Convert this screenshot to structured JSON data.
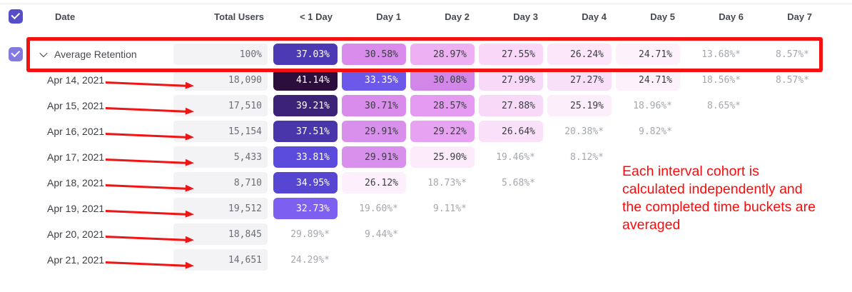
{
  "table": {
    "columns": [
      "Date",
      "Total Users",
      "< 1 Day",
      "Day 1",
      "Day 2",
      "Day 3",
      "Day 4",
      "Day 5",
      "Day 6",
      "Day 7"
    ],
    "checkboxes": {
      "select_all_checked": true,
      "average_row_checked": true
    },
    "rows": [
      {
        "label": "Average Retention",
        "average": true,
        "total": "100%",
        "cells": [
          {
            "value": "37.03%",
            "bg": "#4c3ab4",
            "fg": "#ffffff"
          },
          {
            "value": "30.58%",
            "bg": "#d98ceb",
            "fg": "#3a3d42"
          },
          {
            "value": "28.97%",
            "bg": "#edb0f3",
            "fg": "#3a3d42"
          },
          {
            "value": "27.55%",
            "bg": "#f8d7f8",
            "fg": "#3a3d42"
          },
          {
            "value": "26.24%",
            "bg": "#fbe6fa",
            "fg": "#3a3d42"
          },
          {
            "value": "24.71%",
            "bg": "#fdf2fc",
            "fg": "#3a3d42"
          },
          {
            "value": "13.68%*",
            "bg": null,
            "fg": "#a4a7ad"
          },
          {
            "value": "8.57%*",
            "bg": null,
            "fg": "#a4a7ad"
          }
        ]
      },
      {
        "label": "Apr 14, 2021",
        "average": false,
        "total": "18,090",
        "cells": [
          {
            "value": "41.14%",
            "bg": "#2c0e3c",
            "fg": "#ffffff"
          },
          {
            "value": "33.35%",
            "bg": "#6c59e9",
            "fg": "#ffffff"
          },
          {
            "value": "30.08%",
            "bg": "#d186e8",
            "fg": "#3a3d42"
          },
          {
            "value": "27.99%",
            "bg": "#f8daf8",
            "fg": "#3a3d42"
          },
          {
            "value": "27.27%",
            "bg": "#f9e0f9",
            "fg": "#3a3d42"
          },
          {
            "value": "24.71%",
            "bg": "#fdf2fc",
            "fg": "#3a3d42"
          },
          {
            "value": "18.56%*",
            "bg": null,
            "fg": "#a4a7ad"
          },
          {
            "value": "8.57%*",
            "bg": null,
            "fg": "#a4a7ad"
          }
        ]
      },
      {
        "label": "Apr 15, 2021",
        "average": false,
        "total": "17,510",
        "cells": [
          {
            "value": "39.21%",
            "bg": "#3c2377",
            "fg": "#ffffff"
          },
          {
            "value": "30.71%",
            "bg": "#d98ceb",
            "fg": "#3a3d42"
          },
          {
            "value": "28.57%",
            "bg": "#e49af0",
            "fg": "#3a3d42"
          },
          {
            "value": "27.88%",
            "bg": "#f8daf8",
            "fg": "#3a3d42"
          },
          {
            "value": "25.19%",
            "bg": "#fceffb",
            "fg": "#3a3d42"
          },
          {
            "value": "18.96%*",
            "bg": null,
            "fg": "#a4a7ad"
          },
          {
            "value": "8.65%*",
            "bg": null,
            "fg": "#a4a7ad"
          },
          null
        ]
      },
      {
        "label": "Apr 16, 2021",
        "average": false,
        "total": "15,154",
        "cells": [
          {
            "value": "37.51%",
            "bg": "#4936ab",
            "fg": "#ffffff"
          },
          {
            "value": "29.91%",
            "bg": "#d990ec",
            "fg": "#3a3d42"
          },
          {
            "value": "29.22%",
            "bg": "#e8a2f2",
            "fg": "#3a3d42"
          },
          {
            "value": "26.64%",
            "bg": "#fae1f9",
            "fg": "#3a3d42"
          },
          {
            "value": "20.38%*",
            "bg": null,
            "fg": "#a4a7ad"
          },
          {
            "value": "9.82%*",
            "bg": null,
            "fg": "#a4a7ad"
          },
          null,
          null
        ]
      },
      {
        "label": "Apr 17, 2021",
        "average": false,
        "total": "5,433",
        "cells": [
          {
            "value": "33.81%",
            "bg": "#5b4bdd",
            "fg": "#ffffff"
          },
          {
            "value": "29.91%",
            "bg": "#d990ec",
            "fg": "#3a3d42"
          },
          {
            "value": "25.90%",
            "bg": "#fcecfb",
            "fg": "#3a3d42"
          },
          {
            "value": "19.46%*",
            "bg": null,
            "fg": "#a4a7ad"
          },
          {
            "value": "8.12%*",
            "bg": null,
            "fg": "#a4a7ad"
          },
          null,
          null,
          null
        ]
      },
      {
        "label": "Apr 18, 2021",
        "average": false,
        "total": "8,710",
        "cells": [
          {
            "value": "34.95%",
            "bg": "#5646d2",
            "fg": "#ffffff"
          },
          {
            "value": "26.12%",
            "bg": "#fdeffc",
            "fg": "#3a3d42"
          },
          {
            "value": "18.73%*",
            "bg": null,
            "fg": "#a4a7ad"
          },
          {
            "value": "5.68%*",
            "bg": null,
            "fg": "#a4a7ad"
          },
          null,
          null,
          null,
          null
        ]
      },
      {
        "label": "Apr 19, 2021",
        "average": false,
        "total": "19,512",
        "cells": [
          {
            "value": "32.73%",
            "bg": "#7d60ef",
            "fg": "#ffffff"
          },
          {
            "value": "19.60%*",
            "bg": null,
            "fg": "#a4a7ad"
          },
          {
            "value": "9.11%*",
            "bg": null,
            "fg": "#a4a7ad"
          },
          null,
          null,
          null,
          null,
          null
        ]
      },
      {
        "label": "Apr 20, 2021",
        "average": false,
        "total": "18,845",
        "cells": [
          {
            "value": "29.89%*",
            "bg": null,
            "fg": "#a4a7ad"
          },
          {
            "value": "9.44%*",
            "bg": null,
            "fg": "#a4a7ad"
          },
          null,
          null,
          null,
          null,
          null,
          null
        ]
      },
      {
        "label": "Apr 21, 2021",
        "average": false,
        "total": "14,651",
        "cells": [
          {
            "value": "24.29%*",
            "bg": null,
            "fg": "#a4a7ad"
          },
          null,
          null,
          null,
          null,
          null,
          null,
          null
        ]
      }
    ]
  },
  "annotation": {
    "note_lines": [
      "Each interval cohort is",
      "calculated independently and",
      "the completed time buckets are",
      "averaged"
    ],
    "red": "#f21212"
  }
}
